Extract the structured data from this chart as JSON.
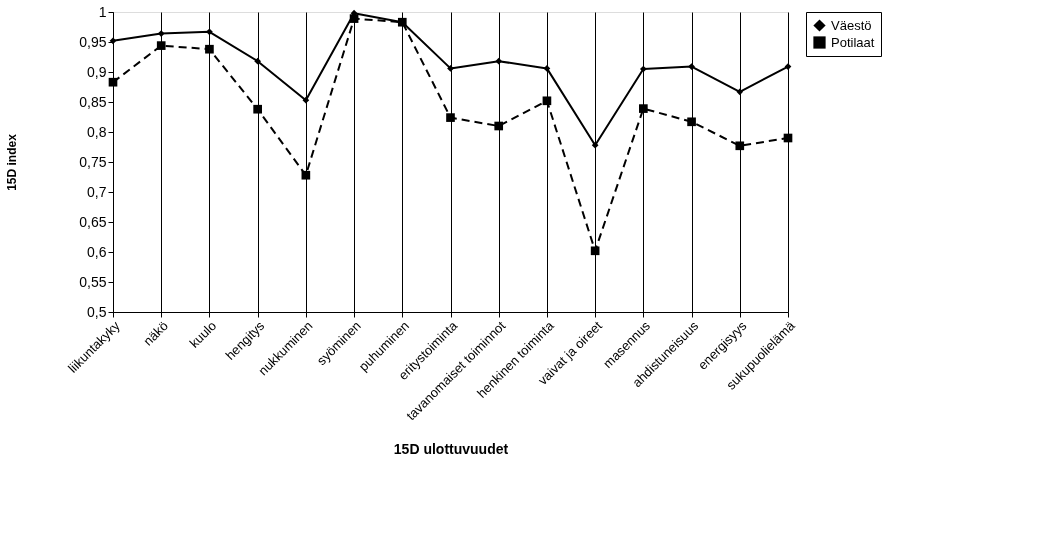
{
  "chart_data": {
    "type": "line",
    "xlabel": "15D ulottuvuudet",
    "ylabel": "15D index",
    "categories": [
      "liikuntakyky",
      "näkö",
      "kuulo",
      "hengitys",
      "nukkuminen",
      "syöminen",
      "puhuminen",
      "eritystoiminta",
      "tavanomaiset toiminnot",
      "henkinen toiminta",
      "vaivat ja oireet",
      "masennus",
      "ahdistuneisuus",
      "energisyys",
      "sukupuolielämä"
    ],
    "series": [
      {
        "name": "Väestö",
        "color": "#000000",
        "marker": "diamond",
        "line_style": "solid",
        "values": [
          0.952,
          0.964,
          0.967,
          0.918,
          0.853,
          0.998,
          0.983,
          0.906,
          0.918,
          0.906,
          0.778,
          0.905,
          0.909,
          0.867,
          0.909
        ]
      },
      {
        "name": "Potilaat",
        "color": "#000000",
        "marker": "square",
        "line_style": "dashed",
        "values": [
          0.883,
          0.944,
          0.938,
          0.838,
          0.728,
          0.989,
          0.983,
          0.824,
          0.81,
          0.852,
          0.602,
          0.839,
          0.817,
          0.777,
          0.79
        ]
      }
    ],
    "ylim": [
      0.5,
      1
    ],
    "yticks": [
      {
        "value": 0.5,
        "label": "0,5"
      },
      {
        "value": 0.55,
        "label": "0,55"
      },
      {
        "value": 0.6,
        "label": "0,6"
      },
      {
        "value": 0.65,
        "label": "0,65"
      },
      {
        "value": 0.7,
        "label": "0,7"
      },
      {
        "value": 0.75,
        "label": "0,75"
      },
      {
        "value": 0.8,
        "label": "0,8"
      },
      {
        "value": 0.85,
        "label": "0,85"
      },
      {
        "value": 0.9,
        "label": "0,9"
      },
      {
        "value": 0.95,
        "label": "0,95"
      },
      {
        "value": 1,
        "label": "1"
      }
    ],
    "grid": "x",
    "legend": "right"
  }
}
